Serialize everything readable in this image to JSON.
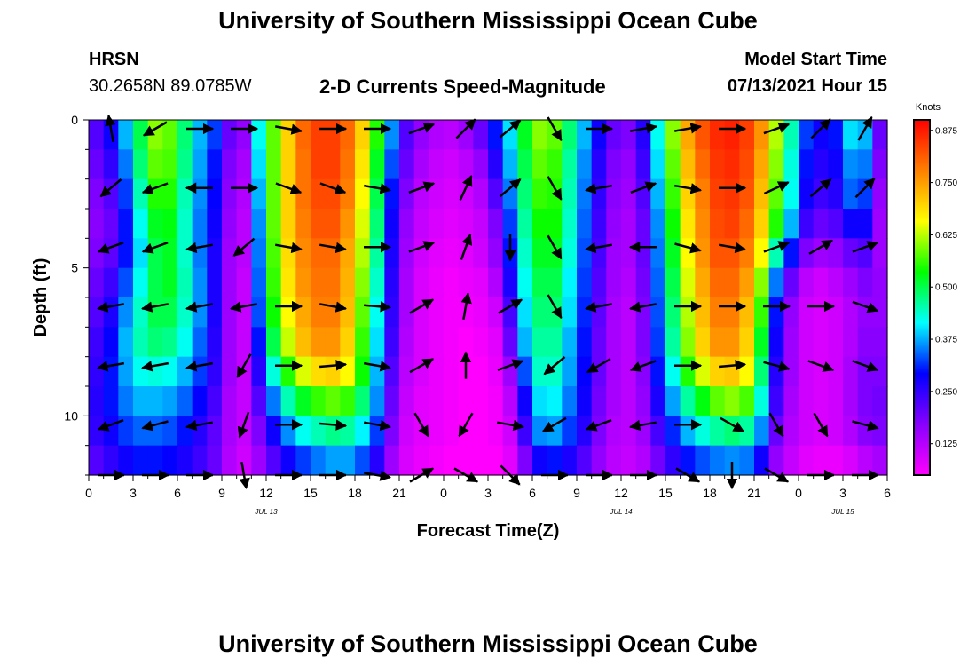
{
  "page": {
    "title_top": "University of Southern Mississippi Ocean Cube",
    "title_bottom": "University of Southern Mississippi Ocean Cube",
    "station": "HRSN",
    "coords": "30.2658N  89.0785W",
    "plot_title": "2-D Currents Speed-Magnitude",
    "model_label": "Model Start Time",
    "model_time": "07/13/2021 Hour 15"
  },
  "chart_data": {
    "type": "heatmap",
    "title": "2-D Currents Speed-Magnitude",
    "xlabel": "Forecast Time(Z)",
    "ylabel": "Depth (ft)",
    "x_tick_labels": [
      "0",
      "3",
      "6",
      "9",
      "12",
      "15",
      "18",
      "21",
      "0",
      "3",
      "6",
      "9",
      "12",
      "15",
      "18",
      "21",
      "0",
      "3",
      "6"
    ],
    "x_hours": [
      0,
      3,
      6,
      9,
      12,
      15,
      18,
      21,
      24,
      27,
      30,
      33,
      36,
      39,
      42,
      45,
      48,
      51,
      54
    ],
    "date_labels": [
      {
        "text": "JUL 13",
        "hour": 12
      },
      {
        "text": "JUL 14",
        "hour": 36
      },
      {
        "text": "JUL 15",
        "hour": 51
      }
    ],
    "xlim": [
      0,
      54
    ],
    "y_tick_labels": [
      "0",
      "5",
      "10"
    ],
    "y_ticks": [
      0,
      5,
      10
    ],
    "ylim": [
      0,
      12
    ],
    "y_inverted": true,
    "colorbar": {
      "unit": "Knots",
      "tick_labels": [
        "0.125",
        "0.250",
        "0.375",
        "0.500",
        "0.625",
        "0.750",
        "0.875"
      ],
      "ticks": [
        0.125,
        0.25,
        0.375,
        0.5,
        0.625,
        0.75,
        0.875
      ],
      "range": [
        0.05,
        0.9
      ],
      "stops": [
        "#ff00ff",
        "#8800ff",
        "#0000ff",
        "#00ffff",
        "#00ff00",
        "#ffff00",
        "#ff8000",
        "#ff0000"
      ]
    },
    "time_hours": [
      0,
      1,
      2,
      3,
      4,
      5,
      6,
      7,
      8,
      9,
      10,
      11,
      12,
      13,
      14,
      15,
      16,
      17,
      18,
      19,
      20,
      21,
      22,
      23,
      24,
      25,
      26,
      27,
      28,
      29,
      30,
      31,
      32,
      33,
      34,
      35,
      36,
      37,
      38,
      39,
      40,
      41,
      42,
      43,
      44,
      45,
      46,
      47,
      48,
      49,
      50,
      51,
      52,
      53
    ],
    "depth_ft": [
      0.5,
      1.5,
      2.5,
      3.5,
      4.5,
      5.5,
      6.5,
      7.5,
      8.5,
      9.5,
      10.5,
      11.5
    ],
    "speed_knots": [
      [
        0.22,
        0.28,
        0.38,
        0.5,
        0.6,
        0.58,
        0.48,
        0.38,
        0.32,
        0.2,
        0.16,
        0.42,
        0.58,
        0.7,
        0.8,
        0.84,
        0.84,
        0.8,
        0.7,
        0.55,
        0.36,
        0.22,
        0.16,
        0.13,
        0.12,
        0.15,
        0.2,
        0.3,
        0.4,
        0.52,
        0.6,
        0.58,
        0.48,
        0.38,
        0.28,
        0.2,
        0.18,
        0.26,
        0.42,
        0.6,
        0.74,
        0.82,
        0.86,
        0.87,
        0.84,
        0.76,
        0.62,
        0.45,
        0.32,
        0.28,
        0.3,
        0.4,
        0.38,
        0.2
      ],
      [
        0.2,
        0.25,
        0.35,
        0.48,
        0.58,
        0.57,
        0.47,
        0.37,
        0.3,
        0.18,
        0.14,
        0.4,
        0.58,
        0.7,
        0.79,
        0.84,
        0.84,
        0.79,
        0.68,
        0.52,
        0.33,
        0.2,
        0.14,
        0.11,
        0.1,
        0.12,
        0.16,
        0.26,
        0.38,
        0.5,
        0.58,
        0.56,
        0.46,
        0.36,
        0.26,
        0.18,
        0.16,
        0.24,
        0.4,
        0.58,
        0.72,
        0.8,
        0.85,
        0.86,
        0.83,
        0.74,
        0.6,
        0.43,
        0.3,
        0.26,
        0.28,
        0.36,
        0.35,
        0.18
      ],
      [
        0.18,
        0.22,
        0.32,
        0.45,
        0.55,
        0.55,
        0.45,
        0.36,
        0.29,
        0.17,
        0.13,
        0.38,
        0.58,
        0.7,
        0.79,
        0.83,
        0.83,
        0.78,
        0.66,
        0.5,
        0.3,
        0.18,
        0.12,
        0.1,
        0.09,
        0.1,
        0.13,
        0.22,
        0.35,
        0.48,
        0.56,
        0.55,
        0.45,
        0.35,
        0.25,
        0.17,
        0.15,
        0.22,
        0.38,
        0.56,
        0.7,
        0.78,
        0.84,
        0.85,
        0.82,
        0.72,
        0.58,
        0.42,
        0.28,
        0.24,
        0.26,
        0.34,
        0.32,
        0.16
      ],
      [
        0.17,
        0.2,
        0.3,
        0.42,
        0.52,
        0.53,
        0.44,
        0.35,
        0.28,
        0.16,
        0.12,
        0.36,
        0.58,
        0.7,
        0.78,
        0.82,
        0.82,
        0.76,
        0.64,
        0.48,
        0.28,
        0.16,
        0.11,
        0.09,
        0.08,
        0.09,
        0.11,
        0.18,
        0.32,
        0.46,
        0.54,
        0.54,
        0.44,
        0.34,
        0.24,
        0.16,
        0.14,
        0.2,
        0.36,
        0.54,
        0.68,
        0.77,
        0.83,
        0.84,
        0.8,
        0.7,
        0.55,
        0.38,
        0.24,
        0.2,
        0.22,
        0.28,
        0.28,
        0.15
      ],
      [
        0.18,
        0.21,
        0.3,
        0.4,
        0.5,
        0.52,
        0.44,
        0.35,
        0.27,
        0.15,
        0.12,
        0.35,
        0.57,
        0.69,
        0.77,
        0.8,
        0.8,
        0.74,
        0.62,
        0.46,
        0.27,
        0.15,
        0.1,
        0.08,
        0.07,
        0.08,
        0.1,
        0.16,
        0.3,
        0.44,
        0.52,
        0.52,
        0.43,
        0.33,
        0.23,
        0.15,
        0.14,
        0.2,
        0.35,
        0.52,
        0.66,
        0.76,
        0.82,
        0.82,
        0.78,
        0.66,
        0.45,
        0.3,
        0.18,
        0.15,
        0.16,
        0.2,
        0.22,
        0.15
      ],
      [
        0.2,
        0.24,
        0.33,
        0.42,
        0.5,
        0.52,
        0.45,
        0.36,
        0.27,
        0.15,
        0.11,
        0.34,
        0.56,
        0.68,
        0.76,
        0.79,
        0.79,
        0.73,
        0.6,
        0.44,
        0.26,
        0.14,
        0.09,
        0.07,
        0.06,
        0.07,
        0.08,
        0.13,
        0.27,
        0.42,
        0.5,
        0.5,
        0.41,
        0.32,
        0.22,
        0.15,
        0.13,
        0.19,
        0.34,
        0.5,
        0.64,
        0.74,
        0.8,
        0.8,
        0.75,
        0.6,
        0.35,
        0.2,
        0.12,
        0.1,
        0.12,
        0.15,
        0.18,
        0.16
      ],
      [
        0.22,
        0.27,
        0.36,
        0.44,
        0.5,
        0.5,
        0.44,
        0.36,
        0.27,
        0.15,
        0.11,
        0.33,
        0.54,
        0.66,
        0.74,
        0.78,
        0.78,
        0.72,
        0.58,
        0.42,
        0.25,
        0.14,
        0.09,
        0.07,
        0.06,
        0.06,
        0.07,
        0.1,
        0.23,
        0.4,
        0.48,
        0.48,
        0.4,
        0.31,
        0.21,
        0.14,
        0.12,
        0.18,
        0.33,
        0.48,
        0.62,
        0.72,
        0.78,
        0.78,
        0.72,
        0.56,
        0.3,
        0.16,
        0.1,
        0.09,
        0.1,
        0.13,
        0.16,
        0.16
      ],
      [
        0.24,
        0.29,
        0.38,
        0.45,
        0.48,
        0.47,
        0.42,
        0.34,
        0.26,
        0.15,
        0.11,
        0.3,
        0.5,
        0.63,
        0.72,
        0.76,
        0.76,
        0.7,
        0.56,
        0.4,
        0.24,
        0.13,
        0.09,
        0.07,
        0.06,
        0.05,
        0.06,
        0.08,
        0.2,
        0.38,
        0.46,
        0.46,
        0.38,
        0.3,
        0.2,
        0.14,
        0.12,
        0.18,
        0.32,
        0.46,
        0.6,
        0.7,
        0.76,
        0.76,
        0.7,
        0.52,
        0.28,
        0.15,
        0.1,
        0.09,
        0.1,
        0.13,
        0.17,
        0.17
      ],
      [
        0.25,
        0.3,
        0.37,
        0.42,
        0.43,
        0.42,
        0.38,
        0.32,
        0.25,
        0.15,
        0.11,
        0.26,
        0.43,
        0.55,
        0.64,
        0.69,
        0.7,
        0.66,
        0.54,
        0.38,
        0.22,
        0.12,
        0.09,
        0.07,
        0.06,
        0.05,
        0.05,
        0.07,
        0.15,
        0.33,
        0.44,
        0.44,
        0.37,
        0.29,
        0.2,
        0.14,
        0.12,
        0.17,
        0.3,
        0.42,
        0.55,
        0.64,
        0.7,
        0.71,
        0.66,
        0.48,
        0.26,
        0.15,
        0.1,
        0.09,
        0.1,
        0.14,
        0.18,
        0.18
      ],
      [
        0.26,
        0.3,
        0.35,
        0.38,
        0.38,
        0.37,
        0.34,
        0.29,
        0.23,
        0.14,
        0.11,
        0.22,
        0.35,
        0.45,
        0.52,
        0.56,
        0.58,
        0.56,
        0.48,
        0.36,
        0.2,
        0.11,
        0.08,
        0.07,
        0.06,
        0.05,
        0.05,
        0.06,
        0.12,
        0.28,
        0.4,
        0.41,
        0.35,
        0.28,
        0.19,
        0.14,
        0.12,
        0.16,
        0.27,
        0.37,
        0.46,
        0.53,
        0.58,
        0.6,
        0.57,
        0.43,
        0.24,
        0.14,
        0.1,
        0.09,
        0.1,
        0.14,
        0.18,
        0.19
      ],
      [
        0.25,
        0.28,
        0.32,
        0.34,
        0.34,
        0.33,
        0.3,
        0.26,
        0.21,
        0.14,
        0.11,
        0.18,
        0.28,
        0.36,
        0.42,
        0.45,
        0.47,
        0.46,
        0.41,
        0.32,
        0.18,
        0.1,
        0.08,
        0.07,
        0.06,
        0.05,
        0.05,
        0.06,
        0.1,
        0.24,
        0.36,
        0.37,
        0.32,
        0.26,
        0.18,
        0.13,
        0.12,
        0.15,
        0.23,
        0.31,
        0.38,
        0.43,
        0.46,
        0.48,
        0.46,
        0.36,
        0.2,
        0.13,
        0.1,
        0.09,
        0.1,
        0.13,
        0.17,
        0.18
      ],
      [
        0.22,
        0.25,
        0.28,
        0.3,
        0.3,
        0.29,
        0.27,
        0.24,
        0.2,
        0.13,
        0.1,
        0.15,
        0.22,
        0.28,
        0.32,
        0.35,
        0.37,
        0.37,
        0.33,
        0.26,
        0.15,
        0.09,
        0.07,
        0.06,
        0.05,
        0.05,
        0.05,
        0.05,
        0.08,
        0.18,
        0.28,
        0.3,
        0.27,
        0.22,
        0.16,
        0.12,
        0.11,
        0.13,
        0.19,
        0.25,
        0.3,
        0.33,
        0.35,
        0.36,
        0.35,
        0.28,
        0.16,
        0.11,
        0.08,
        0.07,
        0.07,
        0.09,
        0.12,
        0.14
      ]
    ],
    "vector_times": [
      1.5,
      4.5,
      7.5,
      10.5,
      13.5,
      16.5,
      19.5,
      22.5,
      25.5,
      28.5,
      31.5,
      34.5,
      37.5,
      40.5,
      43.5,
      46.5,
      49.5,
      52.5
    ],
    "vector_depths": [
      0.3,
      2.3,
      4.3,
      6.3,
      8.3,
      10.3,
      12.0
    ],
    "vector_angle_deg": [
      [
        100,
        -150,
        0,
        0,
        -10,
        0,
        0,
        20,
        45,
        40,
        -60,
        0,
        10,
        10,
        0,
        20,
        45,
        60
      ],
      [
        -140,
        -160,
        180,
        0,
        -20,
        -20,
        -10,
        20,
        65,
        40,
        -60,
        -170,
        20,
        -10,
        0,
        25,
        40,
        45
      ],
      [
        -160,
        -160,
        -170,
        -140,
        -10,
        -10,
        0,
        20,
        70,
        -90,
        -60,
        -170,
        180,
        -15,
        -10,
        20,
        30,
        20
      ],
      [
        -170,
        -170,
        -170,
        -170,
        0,
        -10,
        -5,
        30,
        80,
        30,
        -60,
        -170,
        -170,
        0,
        0,
        0,
        0,
        -20
      ],
      [
        -170,
        -170,
        -170,
        -120,
        0,
        5,
        -10,
        30,
        90,
        20,
        -140,
        -150,
        -160,
        0,
        5,
        -15,
        -20,
        -20
      ],
      [
        -160,
        -165,
        -170,
        -110,
        0,
        -5,
        -10,
        -60,
        -120,
        -10,
        -150,
        -160,
        -170,
        0,
        -30,
        -60,
        -60,
        -15
      ],
      [
        0,
        0,
        0,
        -80,
        0,
        0,
        -10,
        30,
        -30,
        -45,
        0,
        0,
        0,
        -30,
        -90,
        -30,
        0,
        0
      ]
    ]
  }
}
